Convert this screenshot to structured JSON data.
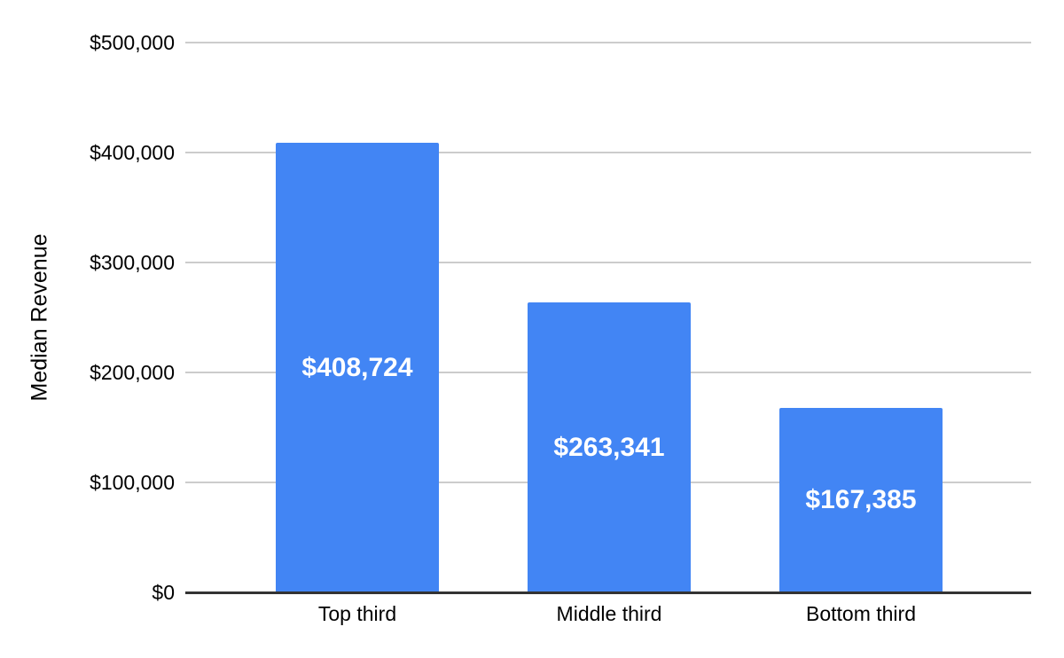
{
  "chart_data": {
    "type": "bar",
    "title": "",
    "categories": [
      "Top third",
      "Middle third",
      "Bottom third"
    ],
    "values": [
      408724,
      263341,
      167385
    ],
    "value_labels": [
      "$408,724",
      "$263,341",
      "$167,385"
    ],
    "xlabel": "",
    "ylabel": "Median Revenue",
    "ylim": [
      0,
      500000
    ],
    "ytick_values": [
      0,
      100000,
      200000,
      300000,
      400000,
      500000
    ],
    "ytick_labels": [
      "$0",
      "$100,000",
      "$200,000",
      "$300,000",
      "$400,000",
      "$500,000"
    ],
    "grid": "horizontal-on",
    "legend_position": "none",
    "colors": {
      "bar": "#4285f4",
      "bar_label_text": "#ffffff",
      "gridline": "#cccccc",
      "axis_baseline": "#333333",
      "text": "#000000",
      "background": "#ffffff"
    }
  }
}
